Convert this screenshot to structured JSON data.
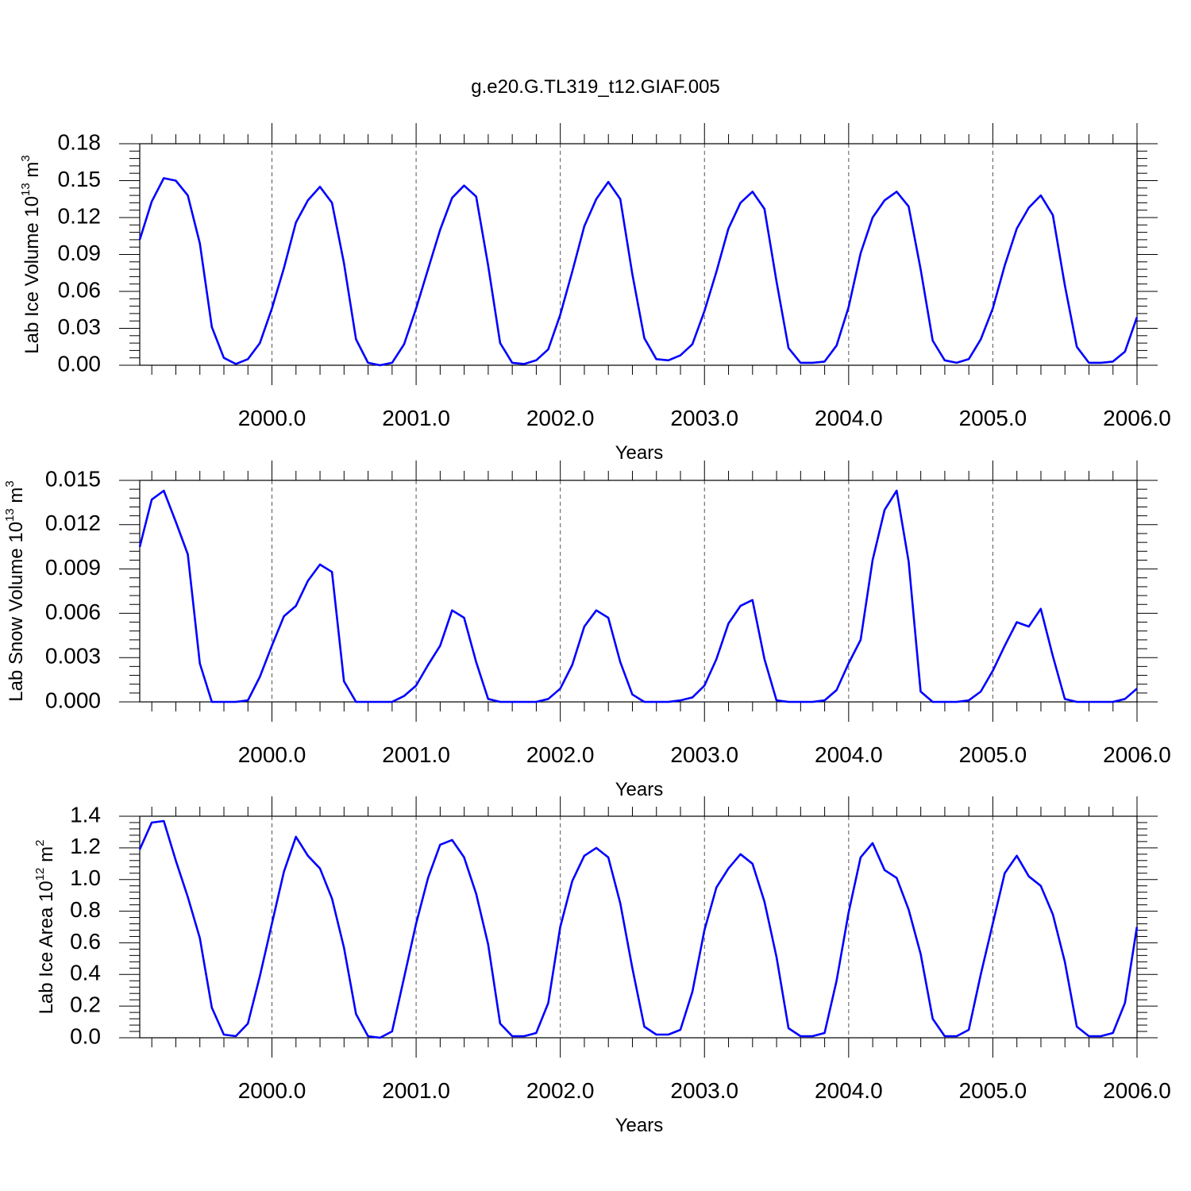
{
  "title": "g.e20.G.TL319_t12.GIAF.005",
  "colors": {
    "line": "#0000ff",
    "axis": "#000000",
    "grid": "#555555"
  },
  "chart_data": [
    {
      "type": "line",
      "xlabel": "Years",
      "ylabel_main": "Lab Ice Volume 10",
      "ylabel_exp": "13",
      "ylabel_unit": " m",
      "ylabel_unit_exp": "3",
      "xlim": [
        1999.083,
        2006.0
      ],
      "ylim": [
        0,
        0.18
      ],
      "yticks": [
        0,
        0.03,
        0.06,
        0.09,
        0.12,
        0.15,
        0.18
      ],
      "ytick_labels": [
        "0.00",
        "0.03",
        "0.06",
        "0.09",
        "0.12",
        "0.15",
        "0.18"
      ],
      "xticks": [
        2000,
        2001,
        2002,
        2003,
        2004,
        2005,
        2006
      ],
      "xtick_labels": [
        "2000.0",
        "2001.0",
        "2002.0",
        "2003.0",
        "2004.0",
        "2005.0",
        "2006.0"
      ],
      "grid": "vertical dashed at major x ticks",
      "x_start": 1999.083,
      "x_step": 0.08333,
      "values": [
        0.102,
        0.133,
        0.152,
        0.15,
        0.138,
        0.099,
        0.031,
        0.006,
        0.001,
        0.005,
        0.018,
        0.046,
        0.079,
        0.116,
        0.134,
        0.145,
        0.132,
        0.083,
        0.021,
        0.002,
        0.0,
        0.002,
        0.017,
        0.046,
        0.078,
        0.11,
        0.136,
        0.146,
        0.137,
        0.081,
        0.018,
        0.002,
        0.001,
        0.004,
        0.013,
        0.041,
        0.076,
        0.113,
        0.135,
        0.149,
        0.135,
        0.074,
        0.022,
        0.005,
        0.004,
        0.008,
        0.017,
        0.044,
        0.076,
        0.111,
        0.132,
        0.141,
        0.127,
        0.068,
        0.014,
        0.002,
        0.002,
        0.003,
        0.016,
        0.047,
        0.091,
        0.12,
        0.134,
        0.141,
        0.129,
        0.078,
        0.02,
        0.004,
        0.002,
        0.005,
        0.021,
        0.046,
        0.081,
        0.111,
        0.128,
        0.138,
        0.122,
        0.065,
        0.015,
        0.002,
        0.002,
        0.003,
        0.011,
        0.039
      ]
    },
    {
      "type": "line",
      "xlabel": "Years",
      "ylabel_main": "Lab Snow Volume 10",
      "ylabel_exp": "13",
      "ylabel_unit": " m",
      "ylabel_unit_exp": "3",
      "xlim": [
        1999.083,
        2006.0
      ],
      "ylim": [
        0,
        0.015
      ],
      "yticks": [
        0,
        0.003,
        0.006,
        0.009,
        0.012,
        0.015
      ],
      "ytick_labels": [
        "0.000",
        "0.003",
        "0.006",
        "0.009",
        "0.012",
        "0.015"
      ],
      "xticks": [
        2000,
        2001,
        2002,
        2003,
        2004,
        2005,
        2006
      ],
      "xtick_labels": [
        "2000.0",
        "2001.0",
        "2002.0",
        "2003.0",
        "2004.0",
        "2005.0",
        "2006.0"
      ],
      "grid": "vertical dashed at major x ticks",
      "x_start": 1999.083,
      "x_step": 0.08333,
      "values": [
        0.0105,
        0.0137,
        0.0143,
        0.0122,
        0.01,
        0.0026,
        0.0,
        0.0,
        0.0,
        0.0001,
        0.0017,
        0.0038,
        0.0058,
        0.0065,
        0.0082,
        0.0093,
        0.0088,
        0.0014,
        0.0,
        0.0,
        0.0,
        0.0,
        0.0004,
        0.0011,
        0.0025,
        0.0038,
        0.0062,
        0.0057,
        0.0027,
        0.0002,
        0.0,
        0.0,
        0.0,
        0.0,
        0.0002,
        0.0009,
        0.0025,
        0.0051,
        0.0062,
        0.0057,
        0.0027,
        0.0005,
        0.0,
        0.0,
        0.0,
        0.0001,
        0.0003,
        0.0011,
        0.0029,
        0.0053,
        0.0065,
        0.0069,
        0.0029,
        0.0001,
        0.0,
        0.0,
        0.0,
        0.0001,
        0.0008,
        0.0026,
        0.0042,
        0.0096,
        0.013,
        0.0143,
        0.0095,
        0.0007,
        0.0,
        0.0,
        0.0,
        0.0001,
        0.0007,
        0.0021,
        0.0038,
        0.0054,
        0.0051,
        0.0063,
        0.0031,
        0.0002,
        0.0,
        0.0,
        0.0,
        0.0,
        0.0002,
        0.0009
      ]
    },
    {
      "type": "line",
      "xlabel": "Years",
      "ylabel_main": "Lab Ice Area 10",
      "ylabel_exp": "12",
      "ylabel_unit": " m",
      "ylabel_unit_exp": "2",
      "xlim": [
        1999.083,
        2006.0
      ],
      "ylim": [
        0,
        1.4
      ],
      "yticks": [
        0,
        0.2,
        0.4,
        0.6,
        0.8,
        1.0,
        1.2,
        1.4
      ],
      "ytick_labels": [
        "0.0",
        "0.2",
        "0.4",
        "0.6",
        "0.8",
        "1.0",
        "1.2",
        "1.4"
      ],
      "xticks": [
        2000,
        2001,
        2002,
        2003,
        2004,
        2005,
        2006
      ],
      "xtick_labels": [
        "2000.0",
        "2001.0",
        "2002.0",
        "2003.0",
        "2004.0",
        "2005.0",
        "2006.0"
      ],
      "grid": "vertical dashed at major x ticks",
      "x_start": 1999.083,
      "x_step": 0.08333,
      "values": [
        1.19,
        1.36,
        1.37,
        1.12,
        0.89,
        0.63,
        0.19,
        0.02,
        0.01,
        0.09,
        0.39,
        0.72,
        1.05,
        1.27,
        1.15,
        1.07,
        0.88,
        0.57,
        0.15,
        0.01,
        0.0,
        0.04,
        0.38,
        0.72,
        1.01,
        1.22,
        1.25,
        1.14,
        0.91,
        0.59,
        0.09,
        0.01,
        0.01,
        0.03,
        0.22,
        0.7,
        0.99,
        1.15,
        1.2,
        1.14,
        0.85,
        0.44,
        0.07,
        0.02,
        0.02,
        0.05,
        0.29,
        0.68,
        0.95,
        1.07,
        1.16,
        1.1,
        0.86,
        0.51,
        0.06,
        0.01,
        0.01,
        0.03,
        0.36,
        0.79,
        1.14,
        1.23,
        1.06,
        1.01,
        0.81,
        0.53,
        0.12,
        0.01,
        0.01,
        0.05,
        0.4,
        0.72,
        1.04,
        1.15,
        1.02,
        0.96,
        0.78,
        0.48,
        0.07,
        0.01,
        0.01,
        0.03,
        0.22,
        0.7
      ]
    }
  ]
}
